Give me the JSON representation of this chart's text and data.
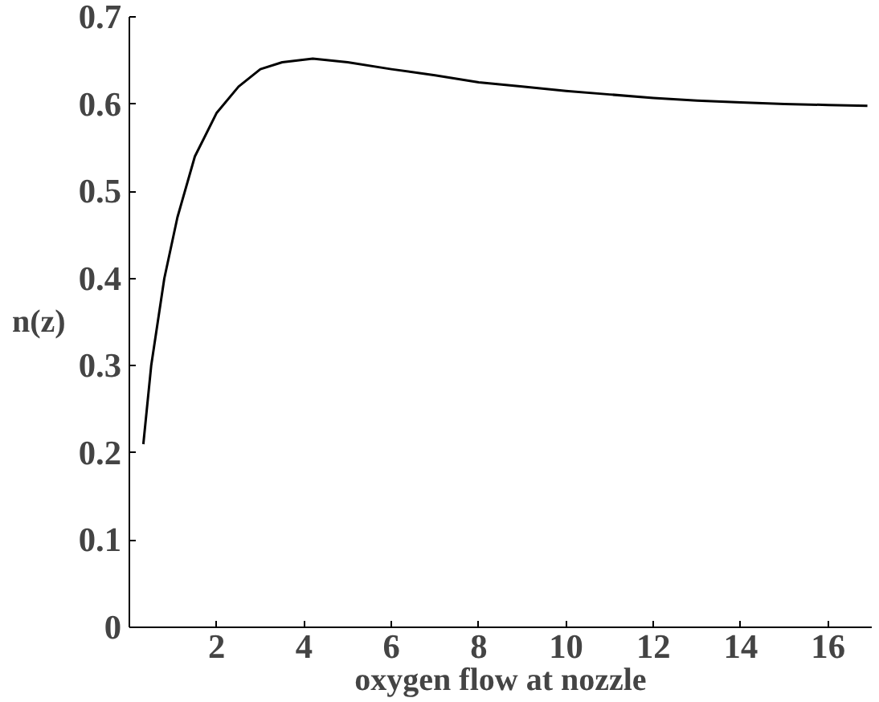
{
  "chart_data": {
    "type": "line",
    "xlabel": "oxygen flow at nozzle",
    "ylabel": "n(z)",
    "series": [
      {
        "color": "#000000",
        "x": [
          0.32,
          0.5,
          0.8,
          1.1,
          1.5,
          2,
          2.5,
          3,
          3.5,
          4.2,
          5,
          6,
          7,
          8,
          9,
          10,
          11,
          12,
          13,
          14,
          15,
          16,
          16.9
        ],
        "values": [
          0.21,
          0.3,
          0.4,
          0.47,
          0.54,
          0.59,
          0.62,
          0.64,
          0.648,
          0.652,
          0.648,
          0.64,
          0.633,
          0.625,
          0.62,
          0.615,
          0.611,
          0.607,
          0.604,
          0.602,
          0.6,
          0.599,
          0.598
        ]
      }
    ],
    "xlim": [
      0,
      17
    ],
    "ylim": [
      0,
      0.7
    ],
    "xticks": [
      2,
      4,
      6,
      8,
      10,
      12,
      14,
      16
    ],
    "yticks": [
      0,
      0.1,
      0.2,
      0.3,
      0.4,
      0.5,
      0.6,
      0.7
    ],
    "grid": false,
    "marker": "none",
    "line_style": "solid"
  }
}
